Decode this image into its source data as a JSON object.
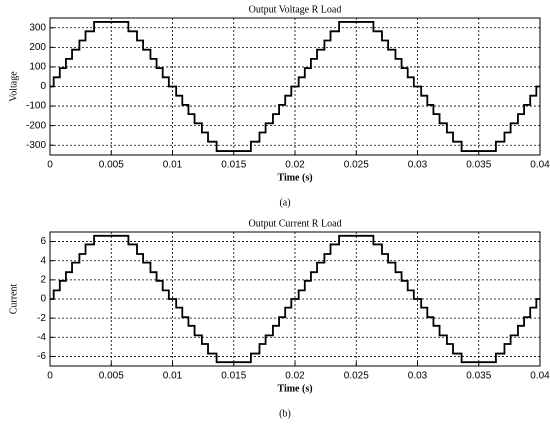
{
  "chart_data": [
    {
      "type": "line",
      "step": "post",
      "title": "Output Voltage R Load",
      "xlabel": "Time (s)",
      "ylabel": "Voltage",
      "caption": "(a)",
      "xlim": [
        0,
        0.04
      ],
      "xticks": [
        0,
        0.005,
        0.01,
        0.015,
        0.02,
        0.025,
        0.03,
        0.035,
        0.04
      ],
      "ylim": [
        -350,
        350
      ],
      "yticks": [
        -300,
        -200,
        -100,
        0,
        100,
        200,
        300
      ],
      "grid": true,
      "x": [
        0,
        0.0003,
        0.0008,
        0.0013,
        0.0018,
        0.0024,
        0.0029,
        0.0036,
        0.0064,
        0.0071,
        0.0076,
        0.0082,
        0.0087,
        0.0092,
        0.0097,
        0.0103,
        0.0108,
        0.0113,
        0.0118,
        0.0124,
        0.0129,
        0.0136,
        0.0164,
        0.0171,
        0.0176,
        0.0182,
        0.0187,
        0.0192,
        0.0197,
        0.0203,
        0.0208,
        0.0213,
        0.0218,
        0.0224,
        0.0229,
        0.0236,
        0.0264,
        0.0271,
        0.0276,
        0.0282,
        0.0287,
        0.0292,
        0.0297,
        0.0303,
        0.0308,
        0.0313,
        0.0318,
        0.0324,
        0.0329,
        0.0336,
        0.0364,
        0.0371,
        0.0376,
        0.0382,
        0.0387,
        0.0392,
        0.0397,
        0.04
      ],
      "series": [
        {
          "color": "#000000",
          "values": [
            0,
            47,
            94,
            141,
            188,
            235,
            282,
            330,
            282,
            235,
            188,
            141,
            94,
            47,
            0,
            -47,
            -94,
            -141,
            -188,
            -235,
            -282,
            -330,
            -282,
            -235,
            -188,
            -141,
            -94,
            -47,
            0,
            47,
            94,
            141,
            188,
            235,
            282,
            330,
            282,
            235,
            188,
            141,
            94,
            47,
            0,
            -47,
            -94,
            -141,
            -188,
            -235,
            -282,
            -330,
            -282,
            -235,
            -188,
            -141,
            -94,
            -47,
            0,
            0
          ]
        }
      ]
    },
    {
      "type": "line",
      "step": "post",
      "title": "Output Current R Load",
      "xlabel": "Time (s)",
      "ylabel": "Current",
      "caption": "(b)",
      "xlim": [
        0,
        0.04
      ],
      "xticks": [
        0,
        0.005,
        0.01,
        0.015,
        0.02,
        0.025,
        0.03,
        0.035,
        0.04
      ],
      "ylim": [
        -7,
        7
      ],
      "yticks": [
        -6,
        -4,
        -2,
        0,
        2,
        4,
        6
      ],
      "grid": true,
      "x": [
        0,
        0.0003,
        0.0008,
        0.0013,
        0.0018,
        0.0024,
        0.0029,
        0.0036,
        0.0064,
        0.0071,
        0.0076,
        0.0082,
        0.0087,
        0.0092,
        0.0097,
        0.0103,
        0.0108,
        0.0113,
        0.0118,
        0.0124,
        0.0129,
        0.0136,
        0.0164,
        0.0171,
        0.0176,
        0.0182,
        0.0187,
        0.0192,
        0.0197,
        0.0203,
        0.0208,
        0.0213,
        0.0218,
        0.0224,
        0.0229,
        0.0236,
        0.0264,
        0.0271,
        0.0276,
        0.0282,
        0.0287,
        0.0292,
        0.0297,
        0.0303,
        0.0308,
        0.0313,
        0.0318,
        0.0324,
        0.0329,
        0.0336,
        0.0364,
        0.0371,
        0.0376,
        0.0382,
        0.0387,
        0.0392,
        0.0397,
        0.04
      ],
      "series": [
        {
          "color": "#000000",
          "values": [
            0,
            0.9,
            1.9,
            2.8,
            3.8,
            4.7,
            5.7,
            6.6,
            5.7,
            4.7,
            3.8,
            2.8,
            1.9,
            0.9,
            0,
            -0.9,
            -1.9,
            -2.8,
            -3.8,
            -4.7,
            -5.7,
            -6.6,
            -5.7,
            -4.7,
            -3.8,
            -2.8,
            -1.9,
            -0.9,
            0,
            0.9,
            1.9,
            2.8,
            3.8,
            4.7,
            5.7,
            6.6,
            5.7,
            4.7,
            3.8,
            2.8,
            1.9,
            0.9,
            0,
            -0.9,
            -1.9,
            -2.8,
            -3.8,
            -4.7,
            -5.7,
            -6.6,
            -5.7,
            -4.7,
            -3.8,
            -2.8,
            -1.9,
            -0.9,
            0,
            0
          ]
        }
      ]
    }
  ]
}
